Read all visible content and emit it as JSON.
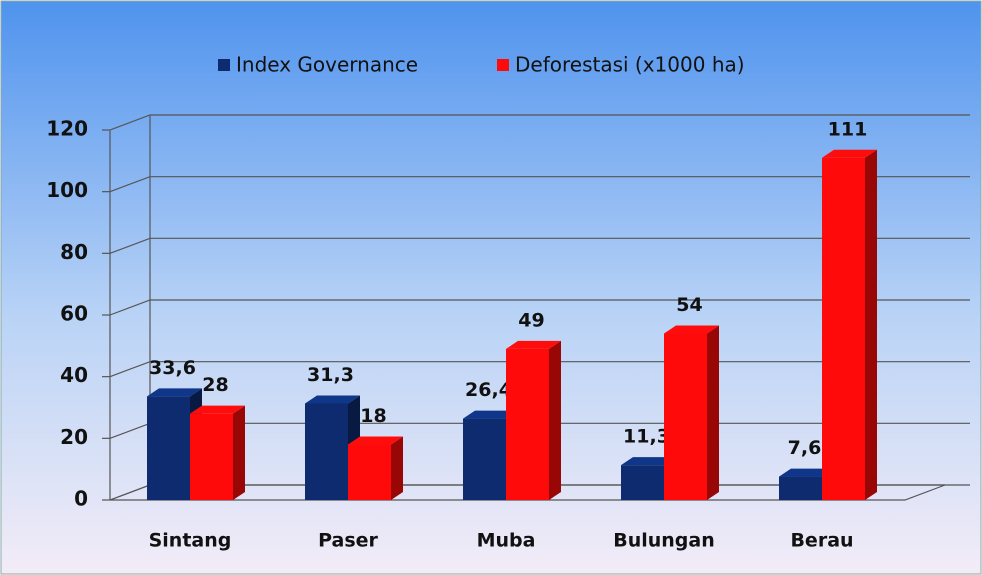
{
  "chart_data": {
    "type": "bar",
    "categories": [
      "Sintang",
      "Paser",
      "Muba",
      "Bulungan",
      "Berau"
    ],
    "series": [
      {
        "name": "Index Governance",
        "color": "#0d2b6e",
        "values": [
          33.6,
          31.3,
          26.4,
          11.3,
          7.6
        ],
        "value_labels": [
          "33,6",
          "31,3",
          "26,4",
          "11,3",
          "7,6"
        ]
      },
      {
        "name": "Deforestasi (x1000 ha)",
        "color": "#ff0a0a",
        "values": [
          28,
          18,
          49,
          54,
          111
        ]
      }
    ],
    "ylim": [
      0,
      120
    ],
    "yticks": [
      0,
      20,
      40,
      60,
      80,
      100,
      120
    ],
    "grid": true,
    "legend": "top"
  }
}
